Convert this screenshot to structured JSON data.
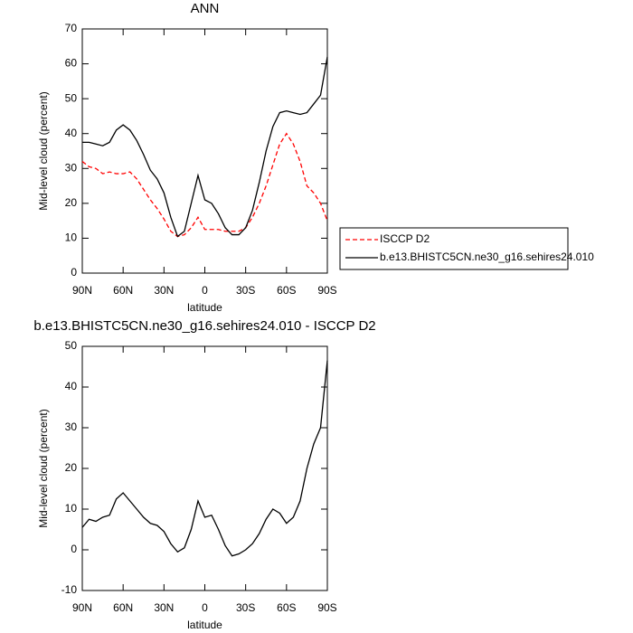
{
  "chart_data": [
    {
      "type": "line",
      "title": "ANN",
      "x_label": "latitude",
      "y_label": "Mid-level cloud (percent)",
      "x": [
        90,
        85,
        80,
        75,
        70,
        65,
        60,
        55,
        50,
        45,
        40,
        35,
        30,
        25,
        20,
        15,
        10,
        5,
        0,
        -5,
        -10,
        -15,
        -20,
        -25,
        -30,
        -35,
        -40,
        -45,
        -50,
        -55,
        -60,
        -65,
        -70,
        -75,
        -80,
        -85,
        -90
      ],
      "series": [
        {
          "name": "ISCCP D2",
          "color": "#ff0000",
          "dash": true,
          "values": [
            32,
            30.5,
            30,
            28.5,
            29,
            28.5,
            28.5,
            29,
            27,
            24,
            21,
            18.5,
            15.5,
            12,
            10.5,
            11,
            13,
            16,
            12.5,
            12.5,
            12.5,
            12,
            12,
            12,
            13,
            16,
            20,
            25,
            31,
            37,
            40,
            37,
            32,
            25,
            23,
            20,
            15
          ]
        },
        {
          "name": "b.e13.BHISTC5CN.ne30_g16.sehires24.010",
          "color": "#000000",
          "dash": false,
          "values": [
            37.5,
            37.5,
            37,
            36.5,
            37.5,
            41,
            42.5,
            41,
            38,
            34,
            29.5,
            27,
            23,
            16,
            10.5,
            12,
            20,
            28,
            21,
            20,
            17,
            13,
            11,
            11,
            13,
            18,
            26,
            35,
            42,
            46,
            46.5,
            46,
            45.5,
            46,
            48.5,
            51,
            62
          ]
        }
      ],
      "xlim": [
        90,
        -90
      ],
      "xticks": [
        {
          "value": 90,
          "label": "90N"
        },
        {
          "value": 60,
          "label": "60N"
        },
        {
          "value": 30,
          "label": "30N"
        },
        0,
        {
          "value": -30,
          "label": "30S"
        },
        {
          "value": -60,
          "label": "60S"
        },
        {
          "value": -90,
          "label": "90S"
        }
      ],
      "ylim": [
        0,
        70
      ],
      "yticks": [
        0,
        10,
        20,
        30,
        40,
        50,
        60,
        70
      ],
      "legend": "right"
    },
    {
      "type": "line",
      "title": "b.e13.BHISTC5CN.ne30_g16.sehires24.010 - ISCCP D2",
      "x_label": "latitude",
      "y_label": "Mid-level cloud (percent)",
      "x": [
        90,
        85,
        80,
        75,
        70,
        65,
        60,
        55,
        50,
        45,
        40,
        35,
        30,
        25,
        20,
        15,
        10,
        5,
        0,
        -5,
        -10,
        -15,
        -20,
        -25,
        -30,
        -35,
        -40,
        -45,
        -50,
        -55,
        -60,
        -65,
        -70,
        -75,
        -80,
        -85,
        -90
      ],
      "series": [
        {
          "color": "#000000",
          "dash": false,
          "values": [
            5.5,
            7.5,
            7,
            8,
            8.5,
            12.5,
            14,
            12,
            10,
            8,
            6.5,
            6,
            4.5,
            1.5,
            -0.5,
            0.5,
            5,
            12,
            8,
            8.5,
            5,
            1,
            -1.5,
            -1,
            0,
            1.5,
            4,
            7.5,
            10,
            9,
            6.5,
            8,
            12,
            20,
            26,
            30,
            46.5
          ]
        }
      ],
      "xlim": [
        90,
        -90
      ],
      "xticks": [
        {
          "value": 90,
          "label": "90N"
        },
        {
          "value": 60,
          "label": "60N"
        },
        {
          "value": 30,
          "label": "30N"
        },
        0,
        {
          "value": -30,
          "label": "30S"
        },
        {
          "value": -60,
          "label": "60S"
        },
        {
          "value": -90,
          "label": "90S"
        }
      ],
      "ylim": [
        -10,
        50
      ],
      "yticks": [
        -10,
        0,
        10,
        20,
        30,
        40,
        50
      ]
    }
  ]
}
